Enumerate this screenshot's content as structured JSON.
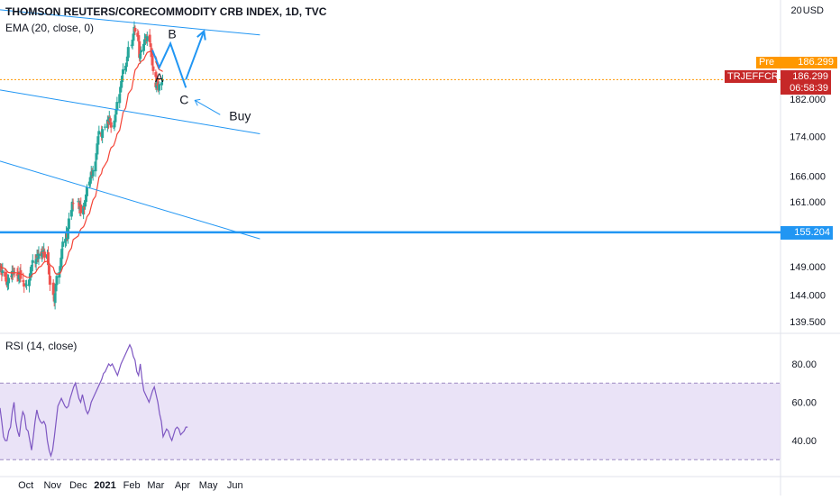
{
  "header": {
    "title": "THOMSON REUTERS/CORECOMMODITY CRB INDEX, 1D, TVC",
    "ema_legend": "EMA (20, close, 0)",
    "rsi_legend": "RSI (14, close)",
    "currency": "USD",
    "top_tick_fragment": "20"
  },
  "tags": {
    "pre_label": "Pre",
    "pre_value": "186.299",
    "ticker": "TRJEFFCRB",
    "last_value": "186.299",
    "countdown": "06:58:39",
    "level_value": "155.204"
  },
  "colors": {
    "up": "#26a69a",
    "down": "#ef5350",
    "ema": "#f44336",
    "rsi": "#7e57c2",
    "rsi_band": "#e1d7f3",
    "drawing": "#2196f3",
    "pre": "#ff9800",
    "last": "#c62828"
  },
  "chart_data": [
    {
      "type": "candlestick",
      "title": "THOMSON REUTERS/CORECOMMODITY CRB INDEX, 1D, TVC",
      "x_ticks": [
        "Oct",
        "Nov",
        "Dec",
        "2021",
        "Feb",
        "Mar",
        "Apr",
        "May",
        "Jun"
      ],
      "y_ticks": [
        "182.000",
        "174.000",
        "166.000",
        "161.000",
        "149.000",
        "144.000",
        "139.500"
      ],
      "y_scale": "log",
      "ylim": [
        137.5,
        201.5
      ],
      "close_series": [
        {
          "month": "2020-09",
          "values": [
            149.0,
            148.6,
            147.5,
            148.3,
            147.2,
            146.8,
            145.9,
            146.3,
            147.0,
            147.3,
            148.1,
            147.7,
            148.2,
            147.9,
            147.4,
            147.0,
            147.5,
            148.0,
            146.8,
            146.3,
            145.5
          ]
        },
        {
          "month": "2020-10",
          "values": [
            146.0,
            145.8,
            146.7,
            147.6,
            148.4,
            149.3,
            150.1,
            149.7,
            150.3,
            151.2,
            150.6,
            151.3,
            150.9,
            151.8,
            151.4,
            151.9,
            150.6,
            151.2,
            149.4,
            147.6,
            145.8
          ]
        },
        {
          "month": "2020-11",
          "values": [
            144.0,
            142.9,
            144.3,
            146.0,
            147.3,
            148.0,
            149.1,
            150.6,
            152.2,
            153.5,
            154.0,
            155.0,
            154.2,
            156.1,
            157.8,
            159.4,
            161.0,
            160.6
          ]
        },
        {
          "month": "2020-12",
          "values": [
            161.1,
            159.6,
            160.1,
            158.8,
            160.2,
            159.7,
            161.3,
            162.3,
            163.8,
            164.9,
            165.8,
            166.7,
            166.2,
            167.2,
            168.9,
            170.6,
            172.6,
            174.1,
            175.2,
            174.0,
            175.6
          ]
        },
        {
          "month": "2021-01",
          "values": [
            176.1,
            177.6,
            176.7,
            178.1,
            177.3,
            175.9,
            176.3,
            177.3,
            178.3,
            179.8,
            181.4,
            183.1,
            184.7,
            186.0,
            187.2,
            188.6,
            189.4,
            190.1,
            191.5,
            193.7
          ]
        },
        {
          "month": "2021-02",
          "values": [
            194.2,
            195.4,
            196.8,
            198.4,
            197.3,
            196.1,
            195.3,
            191.2,
            192.1,
            193.0,
            194.4,
            195.5,
            196.1,
            195.3,
            196.2,
            194.8,
            193.7,
            191.4,
            189.5,
            188.2,
            186.9,
            185.3
          ]
        },
        {
          "month": "2021-03",
          "values": [
            184.6,
            185.7,
            185.0,
            184.1,
            185.3,
            185.7,
            186.3
          ]
        }
      ],
      "ema_period": 20,
      "last": 186.299,
      "horizontal_level": 155.204,
      "trend_lines": [
        {
          "label": "upper channel",
          "points": [
            [
              "2020-09-01",
              202.5
            ],
            [
              "2021-06-30",
              196.5
            ]
          ]
        },
        {
          "label": "middle channel",
          "points": [
            [
              "2020-09-01",
              184.0
            ],
            [
              "2021-06-30",
              174.6
            ]
          ]
        },
        {
          "label": "lower channel",
          "points": [
            [
              "2020-09-01",
              169.0
            ],
            [
              "2021-06-30",
              154.0
            ]
          ]
        }
      ],
      "pattern": [
        {
          "label": "A",
          "date": "2021-03-05",
          "value": 189.0
        },
        {
          "label": "B",
          "date": "2021-03-18",
          "value": 194.5
        },
        {
          "label": "C",
          "date": "2021-04-05",
          "value": 184.5
        }
      ],
      "projection": [
        [
          "2021-04-05",
          186.3
        ],
        [
          "2021-04-26",
          197.4
        ]
      ],
      "annotation": "Buy"
    },
    {
      "type": "line",
      "title": "RSI (14, close)",
      "y_ticks": [
        "80.00",
        "60.00",
        "40.00"
      ],
      "ylim": [
        24.5,
        95.5
      ],
      "band": [
        30,
        70
      ],
      "values": [
        57,
        50,
        42,
        40,
        40,
        45,
        47,
        55,
        60,
        50,
        45,
        42,
        50,
        55,
        53,
        46,
        45,
        40,
        35,
        42,
        50,
        56,
        52,
        50,
        49,
        50,
        48,
        40,
        35,
        32,
        35,
        42,
        50,
        58,
        60,
        62,
        60,
        58,
        57,
        58,
        62,
        65,
        68,
        70,
        66,
        62,
        60,
        64,
        60,
        56,
        54,
        56,
        60,
        62,
        64,
        66,
        68,
        70,
        72,
        75,
        76,
        78,
        80,
        79,
        80,
        78,
        76,
        74,
        77,
        80,
        82,
        84,
        86,
        88,
        90,
        88,
        84,
        82,
        76,
        74,
        80,
        72,
        66,
        64,
        62,
        60,
        63,
        66,
        68,
        64,
        60,
        54,
        50,
        42,
        44,
        46,
        45,
        42,
        40,
        43,
        46,
        47,
        46,
        43,
        44,
        45,
        47,
        47
      ]
    }
  ]
}
